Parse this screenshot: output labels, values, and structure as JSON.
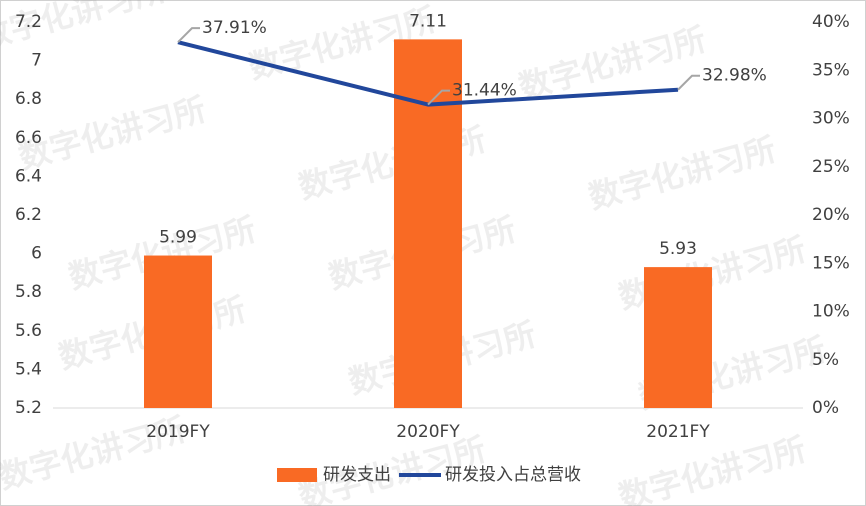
{
  "chart_data": {
    "type": "bar",
    "watermark": "数字化讲习所",
    "categories": [
      "2019FY",
      "2020FY",
      "2021FY"
    ],
    "series": [
      {
        "name": "研发支出",
        "type": "bar",
        "color": "#f96a24",
        "values": [
          5.99,
          7.11,
          5.93
        ]
      },
      {
        "name": "研发投入占总营收",
        "type": "line",
        "axis": "y2",
        "color": "#21479b",
        "values": [
          37.91,
          31.44,
          32.98
        ],
        "value_labels": [
          "37.91%",
          "31.44%",
          "32.98%"
        ]
      }
    ],
    "ylim": [
      5.2,
      7.2
    ],
    "yticks": [
      5.2,
      5.4,
      5.6,
      5.8,
      6,
      6.2,
      6.4,
      6.6,
      6.8,
      7,
      7.2
    ],
    "y2lim": [
      0,
      40
    ],
    "y2ticks": [
      {
        "value": 0,
        "label": "0%"
      },
      {
        "value": 5,
        "label": "5%"
      },
      {
        "value": 10,
        "label": "10%"
      },
      {
        "value": 15,
        "label": "15%"
      },
      {
        "value": 20,
        "label": "20%"
      },
      {
        "value": 25,
        "label": "25%"
      },
      {
        "value": 30,
        "label": "30%"
      },
      {
        "value": 35,
        "label": "35%"
      },
      {
        "value": 40,
        "label": "40%"
      }
    ],
    "legend": "bottom"
  }
}
